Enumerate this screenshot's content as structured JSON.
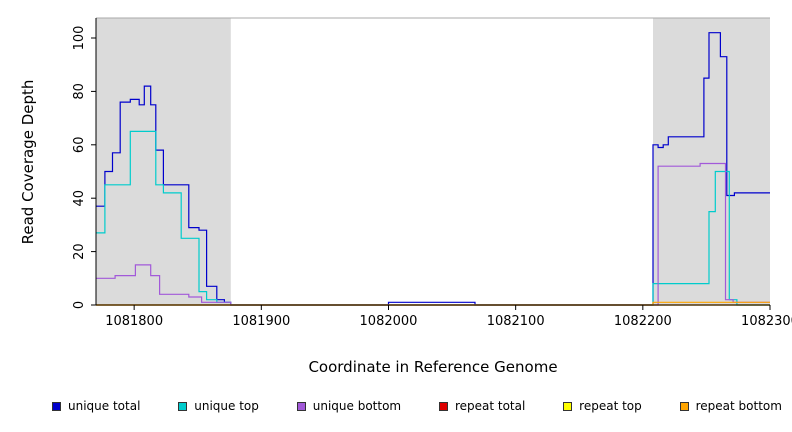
{
  "chart_data": {
    "type": "line",
    "subtype": "step",
    "title": "",
    "xlabel": "Coordinate in Reference Genome",
    "ylabel": "Read Coverage Depth",
    "xlim": [
      1081770,
      1082300
    ],
    "ylim": [
      0,
      100
    ],
    "x_ticks": [
      1081800,
      1081900,
      1082000,
      1082100,
      1082200,
      1082300
    ],
    "y_ticks": [
      0,
      20,
      40,
      60,
      80,
      100
    ],
    "grid": false,
    "legend_position": "bottom",
    "background_color": "#FFFFFF",
    "shade_color": "#DBDBDB",
    "box_top_color": "#A8A8A8",
    "shaded_regions": [
      {
        "x0": 1081770,
        "x1": 1081876
      },
      {
        "x0": 1082208,
        "x1": 1082300
      }
    ],
    "series": [
      {
        "name": "unique total",
        "color": "#0000CC",
        "points": [
          [
            1081770,
            37
          ],
          [
            1081777,
            50
          ],
          [
            1081783,
            57
          ],
          [
            1081789,
            76
          ],
          [
            1081797,
            77
          ],
          [
            1081804,
            75
          ],
          [
            1081808,
            82
          ],
          [
            1081813,
            75
          ],
          [
            1081817,
            58
          ],
          [
            1081823,
            45
          ],
          [
            1081837,
            45
          ],
          [
            1081843,
            29
          ],
          [
            1081851,
            28
          ],
          [
            1081857,
            7
          ],
          [
            1081865,
            2
          ],
          [
            1081871,
            1
          ],
          [
            1081876,
            0
          ],
          [
            1082000,
            1
          ],
          [
            1082068,
            0
          ],
          [
            1082208,
            60
          ],
          [
            1082212,
            59
          ],
          [
            1082216,
            60
          ],
          [
            1082220,
            63
          ],
          [
            1082248,
            85
          ],
          [
            1082252,
            102
          ],
          [
            1082261,
            93
          ],
          [
            1082266,
            41
          ],
          [
            1082272,
            42
          ],
          [
            1082300,
            42
          ]
        ]
      },
      {
        "name": "unique top",
        "color": "#00CCCC",
        "points": [
          [
            1081770,
            27
          ],
          [
            1081777,
            45
          ],
          [
            1081789,
            45
          ],
          [
            1081797,
            65
          ],
          [
            1081813,
            65
          ],
          [
            1081817,
            45
          ],
          [
            1081823,
            42
          ],
          [
            1081837,
            25
          ],
          [
            1081845,
            25
          ],
          [
            1081851,
            5
          ],
          [
            1081857,
            2
          ],
          [
            1081865,
            1
          ],
          [
            1081876,
            0
          ],
          [
            1082208,
            8
          ],
          [
            1082248,
            8
          ],
          [
            1082252,
            35
          ],
          [
            1082257,
            50
          ],
          [
            1082266,
            50
          ],
          [
            1082268,
            2
          ],
          [
            1082274,
            0
          ],
          [
            1082300,
            0
          ]
        ]
      },
      {
        "name": "unique bottom",
        "color": "#A259D9",
        "points": [
          [
            1081770,
            10
          ],
          [
            1081785,
            11
          ],
          [
            1081801,
            15
          ],
          [
            1081813,
            11
          ],
          [
            1081820,
            4
          ],
          [
            1081843,
            3
          ],
          [
            1081853,
            1
          ],
          [
            1081876,
            0
          ],
          [
            1082210,
            0
          ],
          [
            1082212,
            52
          ],
          [
            1082240,
            52
          ],
          [
            1082245,
            53
          ],
          [
            1082261,
            53
          ],
          [
            1082265,
            2
          ],
          [
            1082271,
            1
          ],
          [
            1082300,
            1
          ]
        ]
      },
      {
        "name": "repeat total",
        "color": "#DD0000",
        "points": [
          [
            1081770,
            0
          ],
          [
            1082300,
            0
          ]
        ]
      },
      {
        "name": "repeat top",
        "color": "#FFFF00",
        "points": [
          [
            1081770,
            0
          ],
          [
            1082300,
            0
          ]
        ]
      },
      {
        "name": "repeat bottom",
        "color": "#FFA500",
        "points": [
          [
            1081770,
            0
          ],
          [
            1082206,
            0
          ],
          [
            1082208,
            1
          ],
          [
            1082300,
            1
          ]
        ]
      }
    ]
  }
}
